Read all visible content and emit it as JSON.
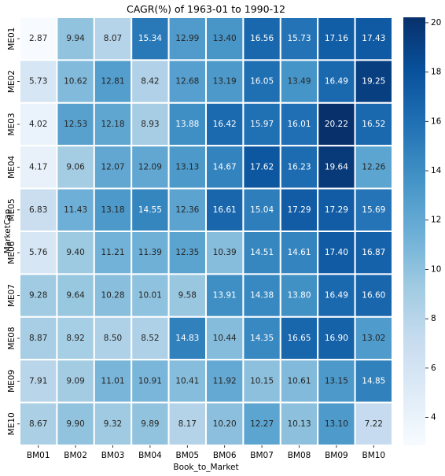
{
  "chart_data": {
    "type": "heatmap",
    "title": "CAGR(%) of 1963-01 to 1990-12",
    "xlabel": "Book_to_Market",
    "ylabel": "MarketCap",
    "x_categories": [
      "BM01",
      "BM02",
      "BM03",
      "BM04",
      "BM05",
      "BM06",
      "BM07",
      "BM08",
      "BM09",
      "BM10"
    ],
    "y_categories": [
      "ME01",
      "ME02",
      "ME03",
      "ME04",
      "ME05",
      "ME06",
      "ME07",
      "ME08",
      "ME09",
      "ME10"
    ],
    "values": [
      [
        2.87,
        9.94,
        8.07,
        15.34,
        12.99,
        13.4,
        16.56,
        15.73,
        17.16,
        17.43
      ],
      [
        5.73,
        10.62,
        12.81,
        8.42,
        12.68,
        13.19,
        16.05,
        13.49,
        16.49,
        19.25
      ],
      [
        4.02,
        12.53,
        12.18,
        8.93,
        13.88,
        16.42,
        15.97,
        16.01,
        20.22,
        16.52
      ],
      [
        4.17,
        9.06,
        12.07,
        12.09,
        13.13,
        14.67,
        17.62,
        16.23,
        19.64,
        12.26
      ],
      [
        6.83,
        11.43,
        13.18,
        14.55,
        12.36,
        16.61,
        15.04,
        17.29,
        17.29,
        15.69
      ],
      [
        5.76,
        9.4,
        11.21,
        11.39,
        12.35,
        10.39,
        14.51,
        14.61,
        17.4,
        16.87
      ],
      [
        9.28,
        9.64,
        10.28,
        10.01,
        9.58,
        13.91,
        14.38,
        13.8,
        16.49,
        16.6
      ],
      [
        8.87,
        8.92,
        8.5,
        8.52,
        14.83,
        10.44,
        14.35,
        16.65,
        16.9,
        13.02
      ],
      [
        7.91,
        9.09,
        11.01,
        10.91,
        10.41,
        11.92,
        10.15,
        10.61,
        13.15,
        14.85
      ],
      [
        8.67,
        9.9,
        9.32,
        9.89,
        8.17,
        10.2,
        12.27,
        10.13,
        13.1,
        7.22
      ]
    ],
    "value_format": "0.00",
    "colormap": "Blues",
    "colorbar": {
      "range": [
        2.87,
        20.22
      ],
      "ticks": [
        4,
        6,
        8,
        10,
        12,
        14,
        16,
        18,
        20
      ]
    },
    "cell_border_color": "#ffffff",
    "text_color_light": "#ffffff",
    "text_color_dark": "#262626",
    "grid": false,
    "legend": "colorbar-right"
  }
}
